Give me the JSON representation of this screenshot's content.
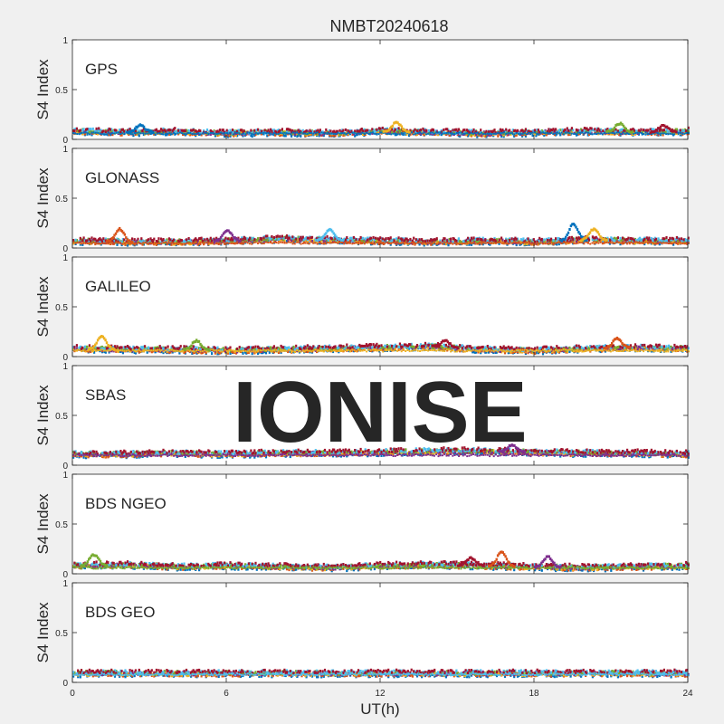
{
  "chart_data": {
    "type": "scatter",
    "title": "NMBT20240618",
    "watermark": "IONISE",
    "xlabel": "UT(h)",
    "xlim": [
      0,
      24
    ],
    "xticks": [
      "0",
      "6",
      "12",
      "18",
      "24"
    ],
    "ylabel": "S4 Index",
    "ylim": [
      0,
      1
    ],
    "yticks": [
      "0",
      "0.5",
      "1"
    ],
    "series_colors": [
      "#0072BD",
      "#D95319",
      "#EDB120",
      "#7E2F8E",
      "#77AC30",
      "#4DBEEE",
      "#A2142F"
    ],
    "panels": [
      {
        "label": "GPS",
        "baseline": 0.06,
        "x": [
          0,
          2,
          4,
          6,
          8,
          10,
          12,
          14,
          16,
          18,
          20,
          22,
          24
        ],
        "y": [
          0.08,
          0.07,
          0.08,
          0.06,
          0.07,
          0.06,
          0.08,
          0.07,
          0.06,
          0.07,
          0.08,
          0.07,
          0.08
        ],
        "peaks": [
          {
            "x": 2.6,
            "y": 0.14
          },
          {
            "x": 12.6,
            "y": 0.17
          },
          {
            "x": 21.3,
            "y": 0.16
          },
          {
            "x": 23.0,
            "y": 0.14
          }
        ]
      },
      {
        "label": "GLONASS",
        "baseline": 0.05,
        "x": [
          0,
          2,
          4,
          6,
          8,
          10,
          12,
          14,
          16,
          18,
          20,
          22,
          24
        ],
        "y": [
          0.07,
          0.06,
          0.06,
          0.07,
          0.09,
          0.08,
          0.07,
          0.06,
          0.07,
          0.06,
          0.08,
          0.07,
          0.07
        ],
        "peaks": [
          {
            "x": 1.8,
            "y": 0.19
          },
          {
            "x": 6.0,
            "y": 0.18
          },
          {
            "x": 10.0,
            "y": 0.18
          },
          {
            "x": 19.5,
            "y": 0.24
          },
          {
            "x": 20.3,
            "y": 0.19
          }
        ]
      },
      {
        "label": "GALILEO",
        "baseline": 0.06,
        "x": [
          0,
          2,
          4,
          6,
          8,
          10,
          12,
          14,
          16,
          18,
          20,
          22,
          24
        ],
        "y": [
          0.08,
          0.07,
          0.07,
          0.06,
          0.07,
          0.08,
          0.09,
          0.1,
          0.07,
          0.06,
          0.08,
          0.09,
          0.08
        ],
        "peaks": [
          {
            "x": 1.1,
            "y": 0.2
          },
          {
            "x": 4.8,
            "y": 0.16
          },
          {
            "x": 14.5,
            "y": 0.16
          },
          {
            "x": 21.2,
            "y": 0.18
          }
        ]
      },
      {
        "label": "SBAS",
        "baseline": 0.1,
        "x": [
          0,
          2,
          4,
          6,
          8,
          10,
          12,
          14,
          16,
          18,
          20,
          22,
          24
        ],
        "y": [
          0.11,
          0.11,
          0.12,
          0.11,
          0.12,
          0.12,
          0.13,
          0.14,
          0.14,
          0.13,
          0.12,
          0.12,
          0.11
        ],
        "peaks": [
          {
            "x": 17.1,
            "y": 0.2
          }
        ]
      },
      {
        "label": "BDS NGEO",
        "baseline": 0.06,
        "x": [
          0,
          2,
          4,
          6,
          8,
          10,
          12,
          14,
          16,
          18,
          20,
          22,
          24
        ],
        "y": [
          0.08,
          0.09,
          0.07,
          0.08,
          0.07,
          0.06,
          0.08,
          0.09,
          0.08,
          0.07,
          0.06,
          0.07,
          0.08
        ],
        "peaks": [
          {
            "x": 0.8,
            "y": 0.19
          },
          {
            "x": 15.5,
            "y": 0.16
          },
          {
            "x": 16.7,
            "y": 0.22
          },
          {
            "x": 18.5,
            "y": 0.17
          }
        ]
      },
      {
        "label": "BDS GEO",
        "baseline": 0.08,
        "x": [
          0,
          2,
          4,
          6,
          8,
          10,
          12,
          14,
          16,
          18,
          20,
          22,
          24
        ],
        "y": [
          0.09,
          0.09,
          0.09,
          0.09,
          0.09,
          0.09,
          0.09,
          0.09,
          0.09,
          0.09,
          0.09,
          0.09,
          0.09
        ],
        "peaks": []
      }
    ]
  }
}
